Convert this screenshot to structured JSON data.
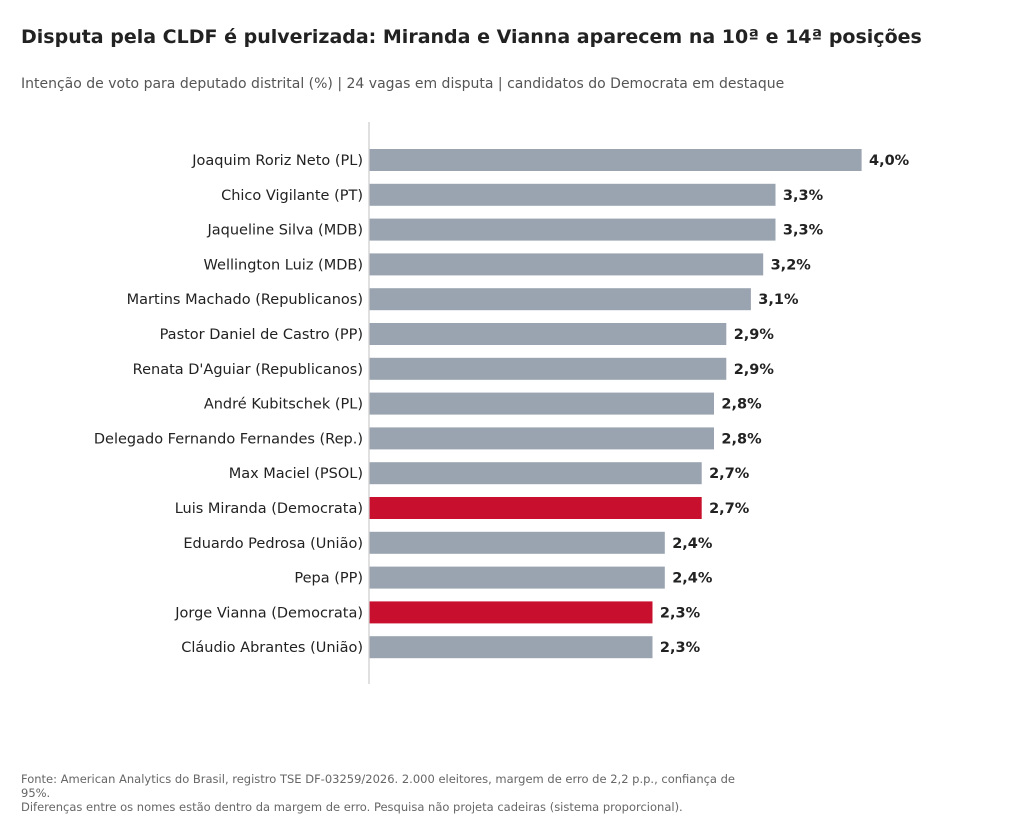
{
  "title": "Disputa pela CLDF é pulverizada: Miranda e Vianna aparecem na 10ª e 14ª posições",
  "subtitle": "Intenção de voto para deputado distrital (%) | 24 vagas em disputa | candidatos do Democrata em destaque",
  "footer": {
    "source": "Fonte: American Analytics do Brasil, registro TSE DF-03259/2026. 2.000 eleitores, margem de erro de 2,2 p.p., confiança de 95%.",
    "note": "Diferenças entre os nomes estão dentro da margem de erro. Pesquisa não projeta cadeiras (sistema proporcional)."
  },
  "colors": {
    "default_bar": "#9aa4b1",
    "highlight_bar": "#c8102e",
    "axis_line": "#cccccc"
  },
  "chart_data": {
    "type": "bar",
    "orientation": "horizontal",
    "categories": [
      "Joaquim Roriz Neto (PL)",
      "Chico Vigilante (PT)",
      "Jaqueline Silva (MDB)",
      "Wellington Luiz (MDB)",
      "Martins Machado (Republicanos)",
      "Pastor Daniel de Castro (PP)",
      "Renata D'Aguiar (Republicanos)",
      "André Kubitschek (PL)",
      "Delegado Fernando Fernandes (Rep.)",
      "Max Maciel (PSOL)",
      "Luis Miranda (Democrata)",
      "Eduardo Pedrosa (União)",
      "Pepa (PP)",
      "Jorge Vianna (Democrata)",
      "Cláudio Abrantes (União)"
    ],
    "values": [
      4.0,
      3.3,
      3.3,
      3.2,
      3.1,
      2.9,
      2.9,
      2.8,
      2.8,
      2.7,
      2.7,
      2.4,
      2.4,
      2.3,
      2.3
    ],
    "value_labels": [
      "4,0%",
      "3,3%",
      "3,3%",
      "3,2%",
      "3,1%",
      "2,9%",
      "2,9%",
      "2,8%",
      "2,8%",
      "2,7%",
      "2,7%",
      "2,4%",
      "2,4%",
      "2,3%",
      "2,3%"
    ],
    "highlighted": [
      "Luis Miranda (Democrata)",
      "Jorge Vianna (Democrata)"
    ],
    "xlim": [
      0,
      4.0
    ],
    "grid": false,
    "xlabel": "",
    "ylabel": ""
  }
}
